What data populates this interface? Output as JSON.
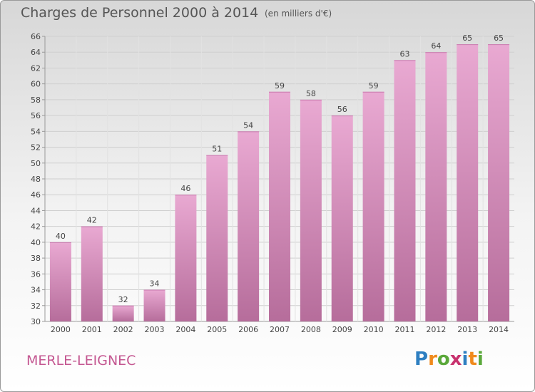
{
  "header": {
    "title": "Charges de Personnel 2000 à 2014",
    "unit": "(en milliers d'€)"
  },
  "footer": {
    "commune": "MERLE-LEIGNEC",
    "logo": "Proxiti"
  },
  "colors": {
    "bar_top": "#e9a9d2",
    "bar_bottom": "#b66d9b",
    "commune": "#c45791",
    "text": "#555555"
  },
  "chart_data": {
    "type": "bar",
    "title": "Charges de Personnel 2000 à 2014",
    "subtitle": "(en milliers d'€)",
    "categories": [
      "2000",
      "2001",
      "2002",
      "2003",
      "2004",
      "2005",
      "2006",
      "2007",
      "2008",
      "2009",
      "2010",
      "2011",
      "2012",
      "2013",
      "2014"
    ],
    "values": [
      40,
      42,
      32,
      34,
      46,
      51,
      54,
      59,
      58,
      56,
      59,
      63,
      64,
      65,
      65
    ],
    "ylim": [
      30,
      66
    ],
    "yticks": [
      30,
      32,
      34,
      36,
      38,
      40,
      42,
      44,
      46,
      48,
      50,
      52,
      54,
      56,
      58,
      60,
      62,
      64,
      66
    ],
    "grid": true,
    "data_labels": true
  }
}
